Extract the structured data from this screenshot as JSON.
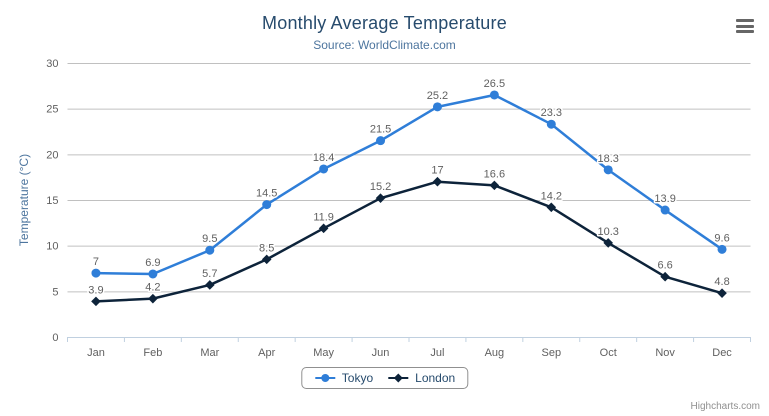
{
  "chart_data": {
    "type": "line",
    "title": "Monthly Average Temperature",
    "subtitle": "Source: WorldClimate.com",
    "categories": [
      "Jan",
      "Feb",
      "Mar",
      "Apr",
      "May",
      "Jun",
      "Jul",
      "Aug",
      "Sep",
      "Oct",
      "Nov",
      "Dec"
    ],
    "series": [
      {
        "name": "Tokyo",
        "color": "#2f7ed8",
        "marker": "circle",
        "values": [
          7,
          6.9,
          9.5,
          14.5,
          18.4,
          21.5,
          25.2,
          26.5,
          23.3,
          18.3,
          13.9,
          9.6
        ]
      },
      {
        "name": "London",
        "color": "#0d233a",
        "marker": "diamond",
        "values": [
          3.9,
          4.2,
          5.7,
          8.5,
          11.9,
          15.2,
          17,
          16.6,
          14.2,
          10.3,
          6.6,
          4.8
        ]
      }
    ],
    "xlabel": "",
    "ylabel": "Temperature (°C)",
    "ylim": [
      0,
      30
    ],
    "ytick_interval": 5,
    "grid": true,
    "data_labels": true,
    "legend_position": "bottom"
  },
  "credits": "Highcharts.com",
  "icons": {
    "context_menu": "hamburger-icon"
  },
  "colors": {
    "title": "#274b6d",
    "subtitle": "#4d759e",
    "axis_title": "#4d759e",
    "axis_label": "#606060",
    "data_label": "#606060",
    "grid": "#c0c0c0",
    "axis_line": "#c0d0e0",
    "legend_text": "#274b6d",
    "legend_border": "#909090",
    "credits": "#909090",
    "menu_icon": "#666666",
    "background": "#ffffff"
  }
}
